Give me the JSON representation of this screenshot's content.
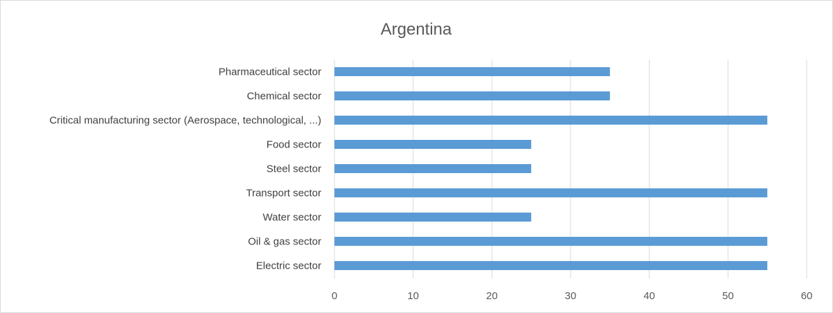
{
  "chart_data": {
    "type": "bar",
    "orientation": "horizontal",
    "title": "Argentina",
    "xlabel": "",
    "ylabel": "",
    "categories": [
      "Pharmaceutical sector",
      "Chemical sector",
      "Critical manufacturing sector (Aerospace, technological, ...)",
      "Food sector",
      "Steel sector",
      "Transport sector",
      "Water sector",
      "Oil & gas sector",
      "Electric sector"
    ],
    "values": [
      35,
      35,
      55,
      25,
      25,
      55,
      25,
      55,
      55
    ],
    "xlim": [
      0,
      60
    ],
    "xticks": [
      0,
      10,
      20,
      30,
      40,
      50,
      60
    ],
    "grid": true,
    "legend": "none",
    "bar_color": "#5b9bd5",
    "grid_color": "#d9d9d9"
  }
}
